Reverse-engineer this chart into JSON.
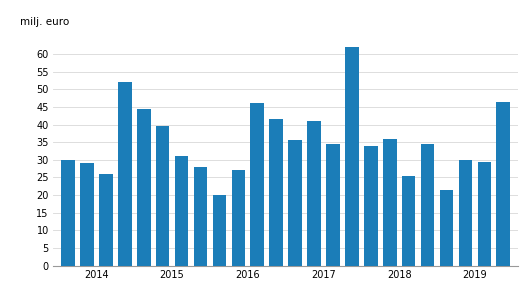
{
  "ylabel": "milj. euro",
  "bar_color": "#1b7db8",
  "background_color": "#ffffff",
  "ylim": [
    0,
    65
  ],
  "yticks": [
    0,
    5,
    10,
    15,
    20,
    25,
    30,
    35,
    40,
    45,
    50,
    55,
    60
  ],
  "ytick_labels": [
    "0",
    "5",
    "10",
    "15",
    "20",
    "25",
    "30",
    "35",
    "40",
    "45",
    "50",
    "55",
    "60"
  ],
  "grid_color": "#d8d8d8",
  "values": [
    30,
    29,
    26,
    52,
    44.5,
    39.5,
    31,
    28,
    20,
    27,
    46,
    41.5,
    35.5,
    41,
    34.5,
    62,
    34,
    36,
    25.5,
    34.5,
    21.5,
    30,
    29.5,
    46.5
  ],
  "year_labels": [
    "2014",
    "2015",
    "2016",
    "2017",
    "2018",
    "2019"
  ],
  "year_positions": [
    1.5,
    5.5,
    9.5,
    13.5,
    17.5,
    21.5
  ],
  "bar_width": 0.72,
  "figsize": [
    5.29,
    3.02
  ],
  "dpi": 100
}
